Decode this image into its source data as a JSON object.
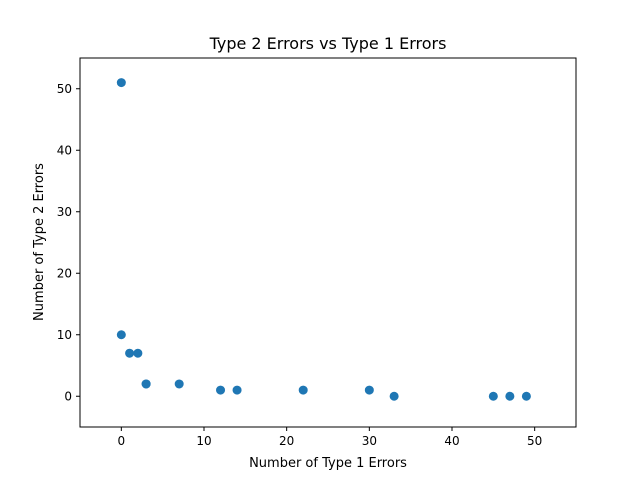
{
  "chart_data": {
    "type": "scatter",
    "title": "Type 2 Errors vs Type 1 Errors",
    "xlabel": "Number of Type 1 Errors",
    "ylabel": "Number of Type 2 Errors",
    "xlim": [
      -5,
      55
    ],
    "ylim": [
      -5,
      55
    ],
    "xticks": [
      0,
      10,
      20,
      30,
      40,
      50
    ],
    "yticks": [
      0,
      10,
      20,
      30,
      40,
      50
    ],
    "grid": false,
    "legend": "none",
    "series": [
      {
        "color": "#1f77b4",
        "points": [
          {
            "x": 0,
            "y": 51
          },
          {
            "x": 0,
            "y": 10
          },
          {
            "x": 1,
            "y": 7
          },
          {
            "x": 2,
            "y": 7
          },
          {
            "x": 3,
            "y": 2
          },
          {
            "x": 3,
            "y": 2
          },
          {
            "x": 7,
            "y": 2
          },
          {
            "x": 12,
            "y": 1
          },
          {
            "x": 14,
            "y": 1
          },
          {
            "x": 22,
            "y": 1
          },
          {
            "x": 30,
            "y": 1
          },
          {
            "x": 33,
            "y": 0
          },
          {
            "x": 45,
            "y": 0
          },
          {
            "x": 47,
            "y": 0
          },
          {
            "x": 49,
            "y": 0
          }
        ]
      }
    ]
  }
}
